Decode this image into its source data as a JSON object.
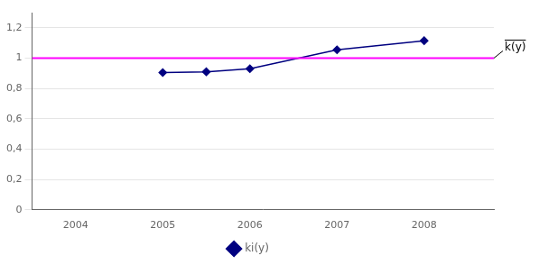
{
  "chart_data": {
    "type": "line",
    "x": [
      2005,
      2005.5,
      2006,
      2007,
      2008
    ],
    "series": [
      {
        "name": "ki(y)",
        "color": "#000080",
        "marker": "diamond",
        "values": [
          0.905,
          0.91,
          0.93,
          1.055,
          1.115
        ]
      }
    ],
    "hline": {
      "y": 1.0,
      "color": "#ff00ff",
      "label": "k(y)"
    },
    "xlim": [
      2003.5,
      2008.8
    ],
    "xticks": [
      2004,
      2005,
      2006,
      2007,
      2008
    ],
    "ylim": [
      0,
      1.3
    ],
    "yticks": [
      0,
      {
        "value": 0.2,
        "label": "0,2"
      },
      {
        "value": 0.4,
        "label": "0,4"
      },
      {
        "value": 0.6,
        "label": "0,6"
      },
      {
        "value": 0.8,
        "label": "0,8"
      },
      1,
      {
        "value": 1.2,
        "label": "1,2"
      }
    ],
    "grid": "y",
    "legend": "bottom"
  }
}
